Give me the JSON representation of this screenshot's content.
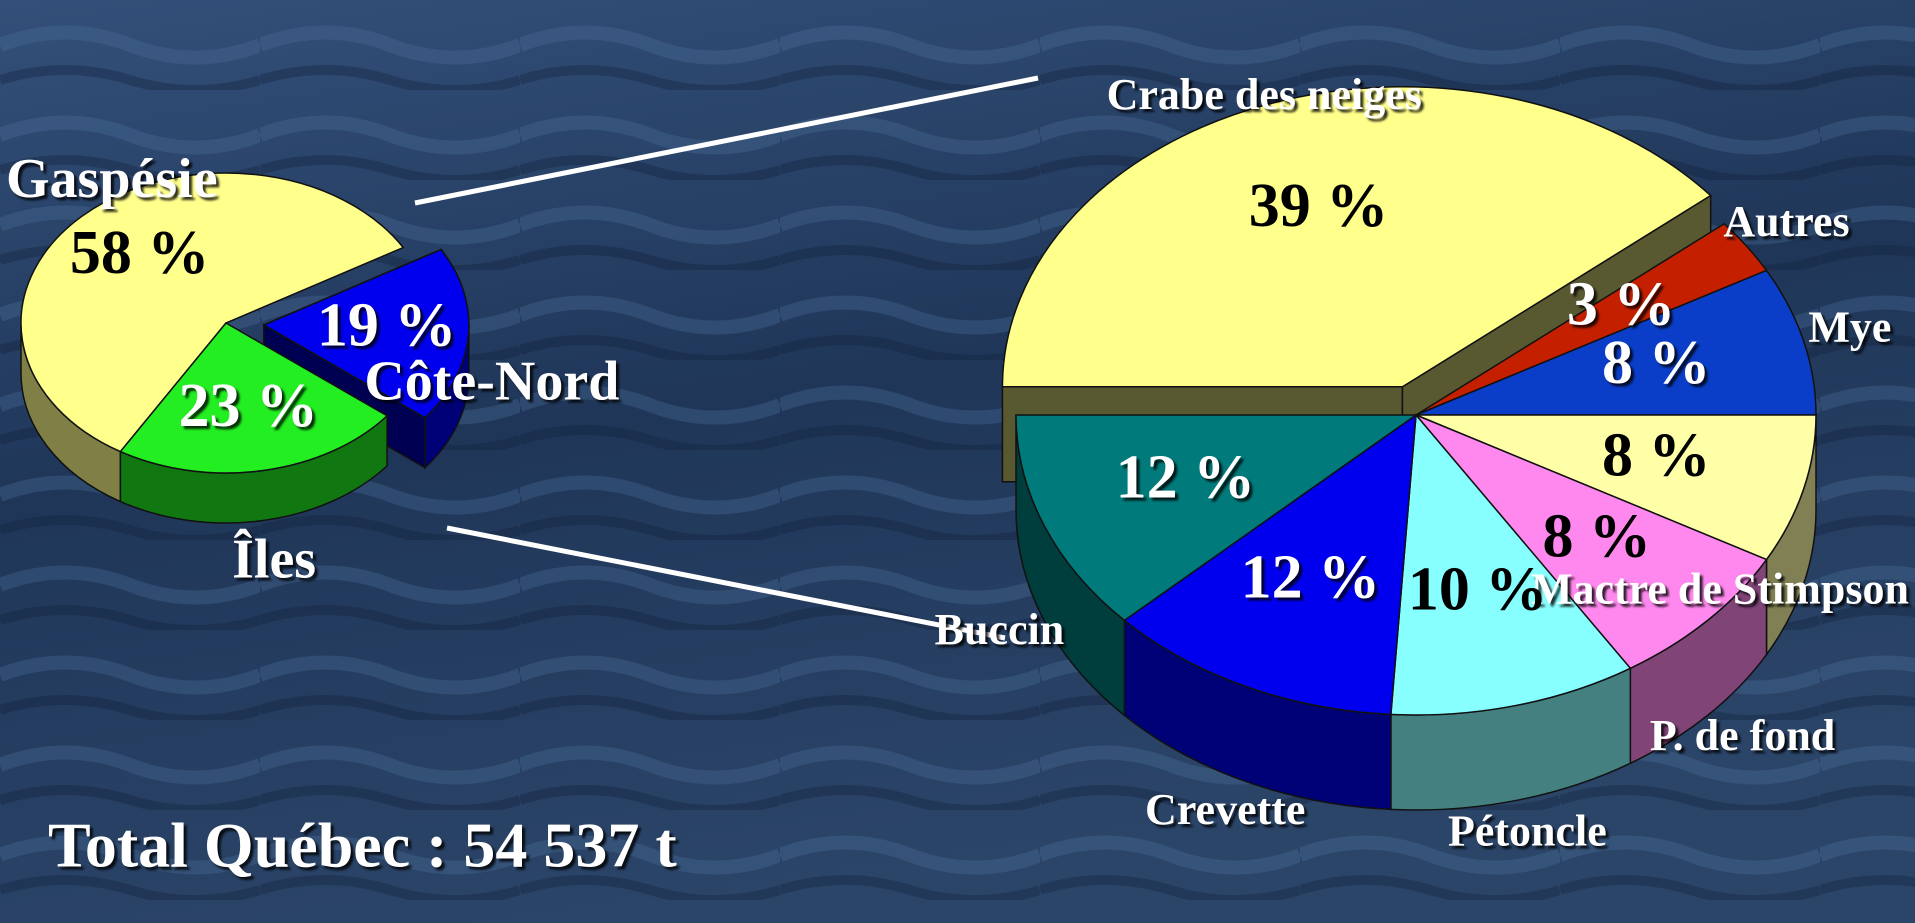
{
  "chart_data": [
    {
      "type": "pie",
      "categories": [
        "Gaspésie",
        "Côte-Nord",
        "Îles"
      ],
      "values": [
        58,
        19,
        23
      ],
      "value_labels": [
        "58 %",
        "19 %",
        "23 %"
      ],
      "colors": [
        "#ffff8c",
        "#0000ee",
        "#22ee22"
      ],
      "annotation": "Total Québec : 54 537 t"
    },
    {
      "type": "pie",
      "categories": [
        "Crabe des neiges",
        "Autres",
        "Mye",
        "Mactre de Stimpson",
        "P. de fond",
        "Pétoncle",
        "Crevette",
        "Buccin"
      ],
      "values": [
        39,
        3,
        8,
        8,
        8,
        10,
        12,
        12
      ],
      "value_labels": [
        "39 %",
        "3 %",
        "8 %",
        "8 %",
        "8 %",
        "10 %",
        "12 %",
        "12 %"
      ],
      "colors": [
        "#ffff8c",
        "#c42000",
        "#0a3ec8",
        "#ffffa8",
        "#ff88ee",
        "#88ffff",
        "#0000ee",
        "#007a7a"
      ]
    }
  ]
}
